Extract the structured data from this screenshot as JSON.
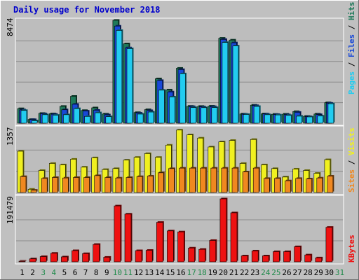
{
  "chart_data": [
    {
      "type": "bar",
      "title": "Daily usage for November 2018",
      "x": [
        "1",
        "2",
        "3",
        "4",
        "5",
        "6",
        "7",
        "8",
        "9",
        "10",
        "11",
        "12",
        "13",
        "14",
        "15",
        "16",
        "17",
        "18",
        "19",
        "20",
        "21",
        "22",
        "23",
        "24",
        "25",
        "26",
        "27",
        "28",
        "29",
        "30",
        "31"
      ],
      "weekend_days": [
        "3",
        "4",
        "10",
        "11",
        "17",
        "18",
        "24",
        "25",
        "31"
      ],
      "ymax_label": "8474",
      "ymax": 8474,
      "series": [
        {
          "name": "Hits",
          "color": "#1f7a5a",
          "values": [
            1200,
            310,
            810,
            780,
            1390,
            2220,
            1050,
            1270,
            760,
            8474,
            6540,
            880,
            1120,
            3660,
            2740,
            4530,
            1400,
            1390,
            1410,
            7000,
            6850,
            760,
            1490,
            770,
            740,
            750,
            960,
            570,
            760,
            1690,
            0
          ]
        },
        {
          "name": "Files",
          "color": "#1848d8",
          "values": [
            1100,
            300,
            780,
            740,
            1110,
            1560,
            1000,
            1070,
            690,
            8000,
            6210,
            830,
            1040,
            3520,
            2580,
            4420,
            1370,
            1350,
            1370,
            6900,
            6620,
            740,
            1450,
            760,
            720,
            700,
            900,
            550,
            710,
            1650,
            0
          ]
        },
        {
          "name": "Pages",
          "color": "#22ccf0",
          "values": [
            1050,
            200,
            700,
            660,
            700,
            1200,
            560,
            860,
            540,
            7640,
            6140,
            750,
            920,
            2720,
            2160,
            4070,
            1290,
            1280,
            1290,
            6650,
            6360,
            720,
            1380,
            700,
            680,
            640,
            580,
            520,
            590,
            1600,
            0
          ]
        }
      ]
    },
    {
      "type": "bar",
      "ymax_label": "1357",
      "ymax": 1357,
      "series": [
        {
          "name": "Visits",
          "color": "#f0f020",
          "values": [
            880,
            70,
            470,
            620,
            590,
            710,
            540,
            740,
            490,
            510,
            690,
            750,
            830,
            750,
            1010,
            1330,
            1230,
            1160,
            970,
            1080,
            1110,
            620,
            1130,
            590,
            510,
            330,
            500,
            470,
            410,
            700,
            0
          ]
        },
        {
          "name": "Sites",
          "color": "#f08820",
          "values": [
            340,
            50,
            300,
            320,
            310,
            320,
            320,
            360,
            320,
            310,
            320,
            340,
            350,
            420,
            510,
            520,
            520,
            520,
            520,
            520,
            520,
            440,
            520,
            300,
            300,
            250,
            300,
            290,
            310,
            350,
            0
          ]
        }
      ]
    },
    {
      "type": "bar",
      "ymax_label": "191479",
      "ymax": 191479,
      "series": [
        {
          "name": "KBytes",
          "color": "#ee1111",
          "values": [
            2000,
            9000,
            16000,
            26000,
            15000,
            34000,
            25000,
            53000,
            14000,
            170000,
            145000,
            34000,
            35000,
            120000,
            94000,
            91000,
            42000,
            38000,
            65000,
            191479,
            149000,
            18000,
            33000,
            18000,
            31000,
            31000,
            46000,
            21000,
            12000,
            105000,
            0
          ]
        }
      ]
    }
  ]
}
